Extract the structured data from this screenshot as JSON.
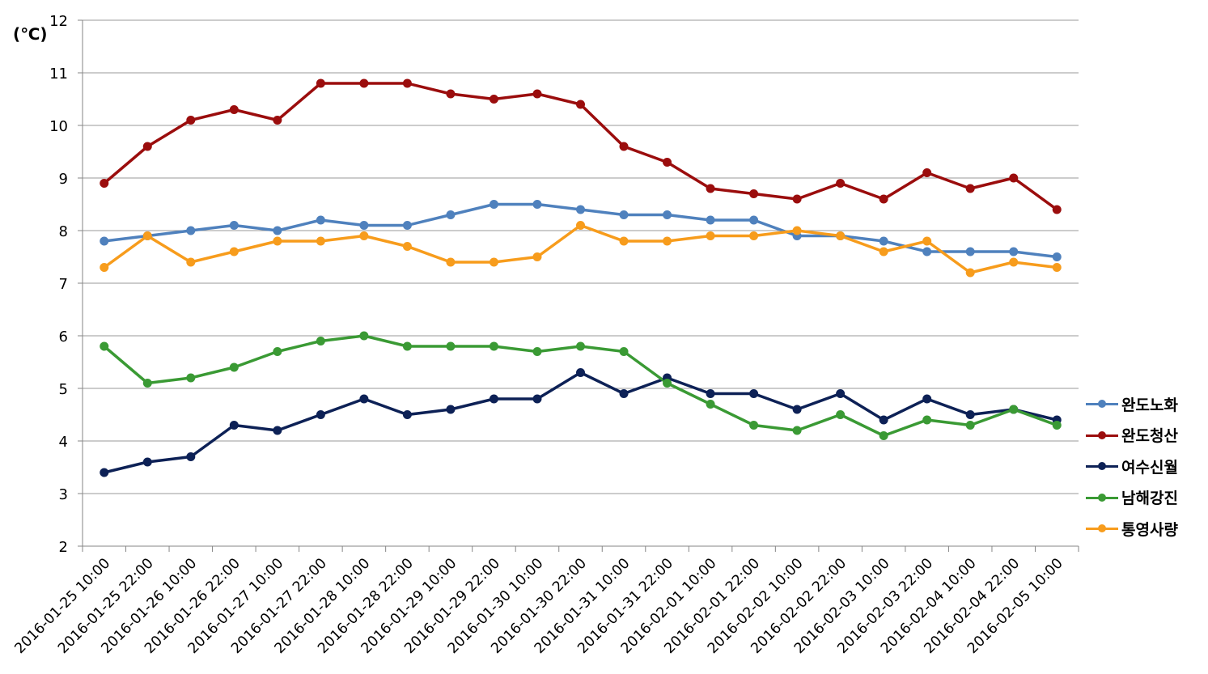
{
  "chart_data": {
    "type": "line",
    "unit_label": "(℃)",
    "ylim": [
      2,
      12
    ],
    "y_ticks": [
      "2",
      "3",
      "4",
      "5",
      "6",
      "7",
      "8",
      "9",
      "10",
      "11",
      "12"
    ],
    "grid": true,
    "legend_position": "right",
    "categories": [
      "2016-01-25 10:00",
      "2016-01-25 22:00",
      "2016-01-26 10:00",
      "2016-01-26 22:00",
      "2016-01-27 10:00",
      "2016-01-27 22:00",
      "2016-01-28 10:00",
      "2016-01-28 22:00",
      "2016-01-29 10:00",
      "2016-01-29 22:00",
      "2016-01-30 10:00",
      "2016-01-30 22:00",
      "2016-01-31 10:00",
      "2016-01-31 22:00",
      "2016-02-01 10:00",
      "2016-02-01 22:00",
      "2016-02-02 10:00",
      "2016-02-02 22:00",
      "2016-02-03 10:00",
      "2016-02-03 22:00",
      "2016-02-04 10:00",
      "2016-02-04 22:00",
      "2016-02-05 10:00"
    ],
    "series": [
      {
        "name": "완도노화",
        "color": "#4f81bd",
        "values": [
          7.8,
          7.9,
          8.0,
          8.1,
          8.0,
          8.2,
          8.1,
          8.1,
          8.3,
          8.5,
          8.5,
          8.4,
          8.3,
          8.3,
          8.2,
          8.2,
          7.9,
          7.9,
          7.8,
          7.6,
          7.6,
          7.6,
          7.5
        ]
      },
      {
        "name": "완도청산",
        "color": "#9b0d0d",
        "values": [
          8.9,
          9.6,
          10.1,
          10.3,
          10.1,
          10.8,
          10.8,
          10.8,
          10.6,
          10.5,
          10.6,
          10.4,
          9.6,
          9.3,
          8.8,
          8.7,
          8.6,
          8.9,
          8.6,
          9.1,
          8.8,
          9.0,
          8.4
        ]
      },
      {
        "name": "여수신월",
        "color": "#0d2156",
        "values": [
          3.4,
          3.6,
          3.7,
          4.3,
          4.2,
          4.5,
          4.8,
          4.5,
          4.6,
          4.8,
          4.8,
          5.3,
          4.9,
          5.2,
          4.9,
          4.9,
          4.6,
          4.9,
          4.4,
          4.8,
          4.5,
          4.6,
          4.4
        ]
      },
      {
        "name": "남해강진",
        "color": "#3a9a34",
        "values": [
          5.8,
          5.1,
          5.2,
          5.4,
          5.7,
          5.9,
          6.0,
          5.8,
          5.8,
          5.8,
          5.7,
          5.8,
          5.7,
          5.1,
          4.7,
          4.3,
          4.2,
          4.5,
          4.1,
          4.4,
          4.3,
          4.6,
          4.3
        ]
      },
      {
        "name": "통영사량",
        "color": "#f79c1c",
        "values": [
          7.3,
          7.9,
          7.4,
          7.6,
          7.8,
          7.8,
          7.9,
          7.7,
          7.4,
          7.4,
          7.5,
          8.1,
          7.8,
          7.8,
          7.9,
          7.9,
          8.0,
          7.9,
          7.6,
          7.8,
          7.2,
          7.4,
          7.3
        ]
      }
    ]
  }
}
